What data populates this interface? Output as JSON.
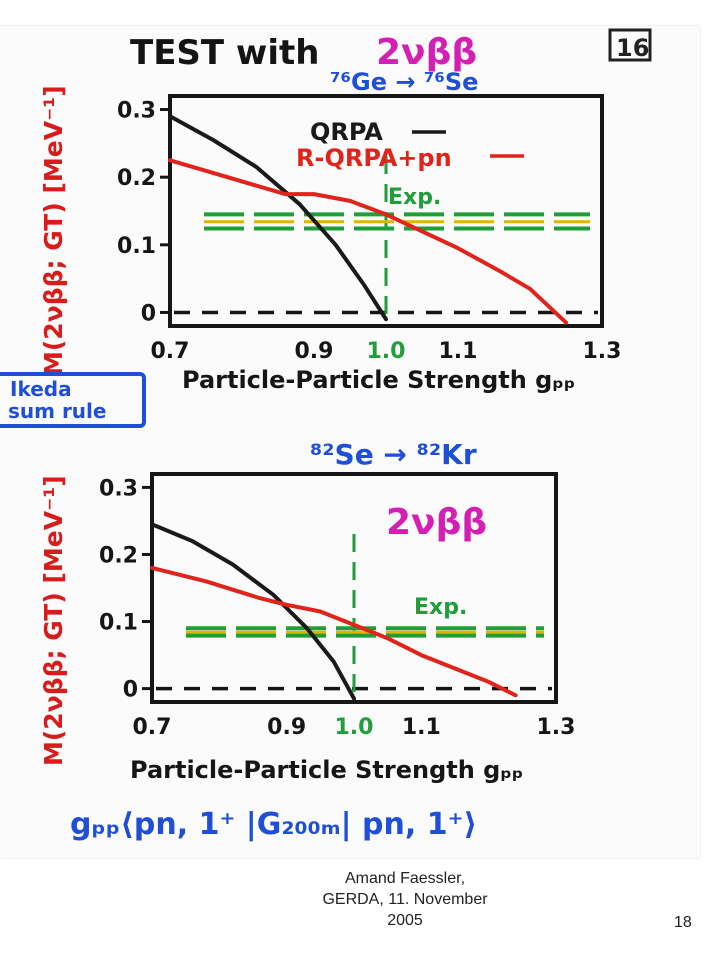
{
  "slide": {
    "page_tag": "16",
    "title_text": "TEST with",
    "title_process": "2νββ",
    "bottom_formula": "gₚₚ⟨pn, 1⁺ |G₂₀₀ₘ| pn, 1⁺⟩",
    "ikeda_line1": "Ikeda",
    "ikeda_line2": "sum rule",
    "page_number": "18"
  },
  "footer": {
    "line1": "Amand Faessler,",
    "line2": "GERDA, 11. November",
    "line3": "2005"
  },
  "colors": {
    "qrpa": "#1a1a1a",
    "rqrpa": "#e0241c",
    "exp_green": "#1f9e3a",
    "exp_yellow": "#e0b400",
    "label_blue": "#1f4fd6",
    "label_magenta": "#d41fb4",
    "label_red": "#d81b1b"
  },
  "chart_data": [
    {
      "type": "line",
      "reaction": "⁷⁶Ge → ⁷⁶Se",
      "ylabel": "M(2νββ; GT) [MeV⁻¹]",
      "xlabel": "Particle-Particle Strength gₚₚ",
      "x_ticks": [
        "0.7",
        "0.9",
        "1.0",
        "1.1",
        "1.3"
      ],
      "x_tick_values": [
        0.7,
        0.9,
        1.0,
        1.1,
        1.3
      ],
      "y_ticks": [
        "0",
        "0.1",
        "0.2",
        "0.3"
      ],
      "y_tick_values": [
        0,
        0.1,
        0.2,
        0.3
      ],
      "xlim": [
        0.7,
        1.3
      ],
      "ylim": [
        -0.02,
        0.32
      ],
      "legend": [
        {
          "label": "QRPA",
          "color": "#1a1a1a"
        },
        {
          "label": "R-QRPA+pn",
          "color": "#e0241c"
        }
      ],
      "exp_label": "Exp.",
      "exp_value": 0.145,
      "exp_band": [
        0.13,
        0.15
      ],
      "series": [
        {
          "name": "QRPA",
          "color": "#1a1a1a",
          "x": [
            0.7,
            0.76,
            0.82,
            0.88,
            0.93,
            0.97,
            1.0
          ],
          "y": [
            0.29,
            0.255,
            0.215,
            0.16,
            0.1,
            0.04,
            -0.01
          ]
        },
        {
          "name": "R-QRPA+pn",
          "color": "#e0241c",
          "x": [
            0.7,
            0.78,
            0.86,
            0.9,
            0.95,
            1.0,
            1.05,
            1.1,
            1.16,
            1.2,
            1.25
          ],
          "y": [
            0.225,
            0.2,
            0.175,
            0.175,
            0.165,
            0.145,
            0.12,
            0.095,
            0.06,
            0.035,
            -0.015
          ]
        }
      ]
    },
    {
      "type": "line",
      "reaction": "⁸²Se → ⁸²Kr",
      "annotation": "2νββ",
      "ylabel": "M(2νββ; GT) [MeV⁻¹]",
      "xlabel": "Particle-Particle Strength gₚₚ",
      "x_ticks": [
        "0.7",
        "0.9",
        "1.0",
        "1.1",
        "1.3"
      ],
      "x_tick_values": [
        0.7,
        0.9,
        1.0,
        1.1,
        1.3
      ],
      "y_ticks": [
        "0",
        "0.1",
        "0.2",
        "0.3"
      ],
      "y_tick_values": [
        0,
        0.1,
        0.2,
        0.3
      ],
      "xlim": [
        0.7,
        1.3
      ],
      "ylim": [
        -0.02,
        0.32
      ],
      "exp_label": "Exp.",
      "exp_value": 0.09,
      "exp_band": [
        0.085,
        0.095
      ],
      "series": [
        {
          "name": "QRPA",
          "color": "#1a1a1a",
          "x": [
            0.7,
            0.76,
            0.82,
            0.88,
            0.93,
            0.97,
            1.0
          ],
          "y": [
            0.245,
            0.22,
            0.185,
            0.14,
            0.09,
            0.04,
            -0.015
          ]
        },
        {
          "name": "R-QRPA+pn",
          "color": "#e0241c",
          "x": [
            0.7,
            0.78,
            0.86,
            0.9,
            0.95,
            1.0,
            1.05,
            1.1,
            1.15,
            1.2,
            1.24
          ],
          "y": [
            0.18,
            0.16,
            0.135,
            0.125,
            0.115,
            0.095,
            0.075,
            0.05,
            0.03,
            0.01,
            -0.01
          ]
        }
      ]
    }
  ]
}
